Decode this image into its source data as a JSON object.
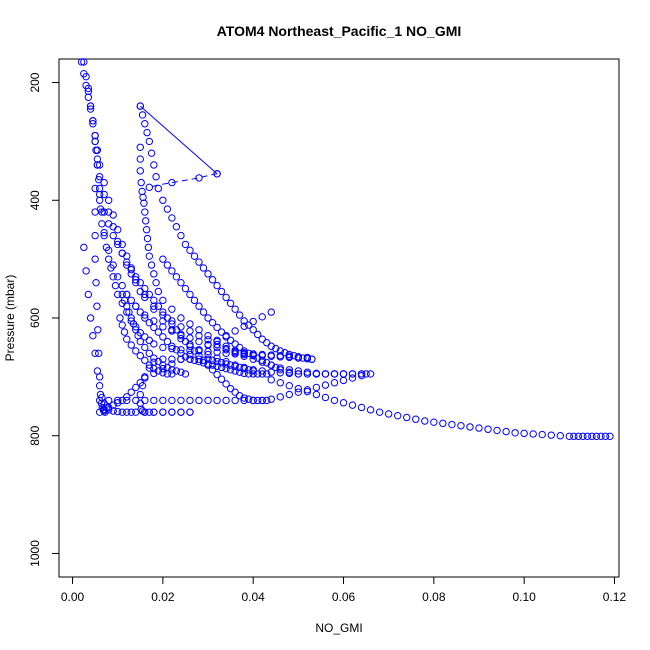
{
  "chart_data": {
    "type": "scatter",
    "title": "ATOM4 Northeast_Pacific_1 NO_GMI",
    "xlabel": "NO_GMI",
    "ylabel": "Pressure (mbar)",
    "xlim": [
      -0.003,
      0.121
    ],
    "ylim": [
      1040,
      160
    ],
    "y_reversed": true,
    "x_ticks": [
      0.0,
      0.02,
      0.04,
      0.06,
      0.08,
      0.1,
      0.12
    ],
    "x_tick_labels": [
      "0.00",
      "0.02",
      "0.04",
      "0.06",
      "0.08",
      "0.10",
      "0.12"
    ],
    "y_ticks": [
      200,
      400,
      600,
      800,
      1000
    ],
    "y_tick_labels": [
      "200",
      "400",
      "600",
      "800",
      "1000"
    ],
    "grid": false,
    "legend": "none",
    "marker": "open-circle",
    "color": "#0000ff",
    "series": [
      {
        "mode": "points",
        "x": [
          0.0025,
          0.003,
          0.0035,
          0.004,
          0.0045,
          0.005,
          0.0052,
          0.0055,
          0.0058,
          0.006,
          0.0062,
          0.0065,
          0.007,
          0.0075,
          0.008,
          0.0085,
          0.009,
          0.0095,
          0.01,
          0.011,
          0.012,
          0.013,
          0.014,
          0.015,
          0.016,
          0.017,
          0.018,
          0.02,
          0.022,
          0.024,
          0.026,
          0.028,
          0.03,
          0.032,
          0.034,
          0.036,
          0.038,
          0.04,
          0.042,
          0.044,
          0.046,
          0.048,
          0.05,
          0.052,
          0.053
        ],
        "y": [
          165,
          190,
          215,
          240,
          265,
          290,
          315,
          340,
          365,
          390,
          415,
          440,
          460,
          480,
          500,
          515,
          530,
          545,
          560,
          575,
          590,
          605,
          615,
          625,
          632,
          638,
          644,
          650,
          652,
          654,
          655,
          656,
          657,
          658,
          660,
          661,
          662,
          663,
          664,
          665,
          666,
          667,
          668,
          669,
          670
        ]
      },
      {
        "mode": "points",
        "x": [
          0.002,
          0.0025,
          0.003,
          0.0035,
          0.004,
          0.0045,
          0.005,
          0.0055,
          0.006,
          0.007,
          0.008,
          0.009,
          0.01,
          0.011,
          0.012,
          0.013,
          0.014,
          0.016,
          0.018,
          0.02,
          0.022,
          0.024,
          0.026,
          0.028,
          0.03,
          0.032,
          0.034,
          0.036,
          0.038,
          0.04,
          0.042,
          0.044,
          0.046,
          0.048,
          0.05,
          0.052,
          0.054,
          0.056,
          0.058,
          0.06,
          0.062,
          0.064,
          0.065
        ],
        "y": [
          165,
          185,
          205,
          225,
          245,
          265,
          290,
          315,
          340,
          370,
          400,
          425,
          450,
          475,
          495,
          515,
          535,
          560,
          585,
          605,
          620,
          635,
          645,
          655,
          662,
          668,
          674,
          680,
          684,
          688,
          690,
          692,
          693,
          694,
          695,
          695,
          695,
          695,
          695,
          695,
          695,
          695,
          695
        ]
      },
      {
        "mode": "points",
        "x": [
          0.0035,
          0.004,
          0.0045,
          0.005,
          0.0055,
          0.006,
          0.007,
          0.008,
          0.009,
          0.01,
          0.011,
          0.012,
          0.013,
          0.014,
          0.015,
          0.016,
          0.018,
          0.02,
          0.022,
          0.024,
          0.026,
          0.028,
          0.03,
          0.032,
          0.034,
          0.036,
          0.038,
          0.04,
          0.042,
          0.044,
          0.046,
          0.048,
          0.05,
          0.052,
          0.054,
          0.056,
          0.058,
          0.06,
          0.062,
          0.064
        ],
        "y": [
          210,
          240,
          270,
          300,
          330,
          360,
          390,
          420,
          445,
          470,
          490,
          510,
          525,
          540,
          555,
          565,
          580,
          595,
          605,
          615,
          622,
          630,
          637,
          645,
          652,
          659,
          665,
          670,
          675,
          680,
          685,
          688,
          690,
          692,
          694,
          695,
          695,
          695,
          695,
          695
        ]
      },
      {
        "mode": "points",
        "x": [
          0.005,
          0.0055,
          0.006,
          0.0065,
          0.007,
          0.008,
          0.009,
          0.01,
          0.011,
          0.012,
          0.014,
          0.016,
          0.018,
          0.02,
          0.022,
          0.024,
          0.026,
          0.028,
          0.03,
          0.032,
          0.034,
          0.036,
          0.038,
          0.04,
          0.042,
          0.044,
          0.046,
          0.048,
          0.05,
          0.052
        ],
        "y": [
          300,
          340,
          380,
          420,
          455,
          485,
          510,
          530,
          545,
          560,
          580,
          595,
          605,
          615,
          622,
          628,
          634,
          640,
          645,
          650,
          654,
          657,
          659,
          661,
          662,
          663,
          664,
          665,
          666,
          667
        ]
      },
      {
        "mode": "points",
        "x": [
          0.005,
          0.005,
          0.005,
          0.005,
          0.0052,
          0.0054,
          0.0056,
          0.0058,
          0.006,
          0.0062,
          0.0064,
          0.0066,
          0.0068,
          0.007,
          0.0072
        ],
        "y": [
          380,
          420,
          460,
          500,
          540,
          580,
          620,
          660,
          700,
          730,
          745,
          752,
          756,
          758,
          760
        ]
      },
      {
        "mode": "points",
        "x": [
          0.0025,
          0.003,
          0.0035,
          0.004,
          0.0045,
          0.005,
          0.0055,
          0.006,
          0.0065,
          0.007,
          0.0075,
          0.008,
          0.009,
          0.01,
          0.011,
          0.012,
          0.013,
          0.014,
          0.016,
          0.018,
          0.02,
          0.022,
          0.024,
          0.026
        ],
        "y": [
          480,
          520,
          560,
          600,
          630,
          660,
          690,
          715,
          735,
          745,
          752,
          756,
          758,
          759,
          760,
          760,
          760,
          760,
          760,
          760,
          760,
          760,
          760,
          760
        ]
      },
      {
        "mode": "points",
        "x": [
          0.015,
          0.015,
          0.015,
          0.0152,
          0.0154,
          0.0156,
          0.0158,
          0.016,
          0.0162,
          0.0164,
          0.0166,
          0.0168,
          0.017,
          0.0175,
          0.018,
          0.0185,
          0.019,
          0.02,
          0.022,
          0.024,
          0.026,
          0.028,
          0.03,
          0.032,
          0.034,
          0.036,
          0.038
        ],
        "y": [
          310,
          330,
          350,
          370,
          385,
          395,
          405,
          420,
          435,
          450,
          465,
          480,
          495,
          510,
          525,
          540,
          555,
          570,
          585,
          600,
          610,
          620,
          630,
          640,
          648,
          655,
          660
        ]
      },
      {
        "mode": "points",
        "x": [
          0.015,
          0.0155,
          0.016,
          0.0165,
          0.017,
          0.0175,
          0.018,
          0.0185,
          0.019,
          0.02,
          0.021,
          0.022,
          0.023,
          0.024,
          0.025,
          0.026,
          0.027,
          0.028,
          0.029,
          0.03,
          0.031,
          0.032,
          0.033,
          0.034,
          0.035,
          0.036,
          0.037,
          0.038,
          0.039,
          0.04,
          0.041,
          0.042,
          0.043,
          0.044,
          0.045,
          0.046,
          0.047,
          0.048,
          0.049,
          0.05,
          0.051,
          0.052,
          0.053
        ],
        "y": [
          240,
          255,
          270,
          285,
          300,
          320,
          340,
          360,
          380,
          400,
          415,
          430,
          445,
          460,
          475,
          485,
          495,
          505,
          515,
          525,
          535,
          545,
          555,
          565,
          575,
          585,
          595,
          605,
          612,
          620,
          628,
          636,
          642,
          648,
          652,
          656,
          659,
          662,
          664,
          666,
          668,
          669,
          670
        ]
      },
      {
        "mode": "points",
        "x": [
          0.04,
          0.039,
          0.038,
          0.037,
          0.036,
          0.035,
          0.034,
          0.033,
          0.032,
          0.031,
          0.03,
          0.028,
          0.026,
          0.024,
          0.022,
          0.02,
          0.018,
          0.017,
          0.016,
          0.0155,
          0.015,
          0.015,
          0.0152,
          0.0155,
          0.016,
          0.017,
          0.018,
          0.02,
          0.022,
          0.024,
          0.026
        ],
        "y": [
          690,
          688,
          686,
          684,
          682,
          680,
          678,
          676,
          674,
          672,
          670,
          670,
          670,
          670,
          670,
          670,
          675,
          685,
          700,
          715,
          730,
          745,
          755,
          758,
          760,
          760,
          760,
          760,
          760,
          760,
          760
        ]
      },
      {
        "mode": "points",
        "x": [
          0.02,
          0.021,
          0.022,
          0.023,
          0.024,
          0.025,
          0.026,
          0.027,
          0.028,
          0.029,
          0.03,
          0.031,
          0.032,
          0.033,
          0.034,
          0.035,
          0.036,
          0.037,
          0.038,
          0.039,
          0.04,
          0.041,
          0.042,
          0.043,
          0.044,
          0.045,
          0.046,
          0.048,
          0.05,
          0.052,
          0.054,
          0.056,
          0.058,
          0.06
        ],
        "y": [
          500,
          510,
          520,
          530,
          540,
          550,
          560,
          570,
          580,
          590,
          600,
          608,
          616,
          624,
          632,
          638,
          644,
          650,
          656,
          660,
          664,
          668,
          672,
          676,
          680,
          684,
          688,
          692,
          695,
          695,
          695,
          695,
          695,
          695
        ]
      },
      {
        "mode": "points",
        "x": [
          0.012,
          0.013,
          0.014,
          0.015,
          0.016,
          0.017,
          0.018,
          0.019,
          0.02,
          0.021,
          0.022,
          0.023,
          0.024,
          0.025,
          0.026,
          0.027,
          0.028,
          0.029,
          0.03,
          0.031,
          0.032,
          0.033,
          0.034,
          0.035,
          0.036,
          0.037,
          0.038,
          0.039,
          0.04,
          0.041,
          0.042,
          0.043
        ],
        "y": [
          560,
          570,
          580,
          590,
          600,
          608,
          616,
          624,
          632,
          640,
          648,
          654,
          660,
          666,
          670,
          672,
          674,
          676,
          678,
          680,
          682,
          684,
          686,
          688,
          690,
          692,
          694,
          695,
          695,
          695,
          695,
          695
        ]
      },
      {
        "mode": "points",
        "x": [
          0.044,
          0.042,
          0.04,
          0.038,
          0.036,
          0.034,
          0.032,
          0.03,
          0.028,
          0.026,
          0.024,
          0.022,
          0.02,
          0.018,
          0.016,
          0.015,
          0.014,
          0.013,
          0.012,
          0.011,
          0.01,
          0.009,
          0.008,
          0.007,
          0.006
        ],
        "y": [
          590,
          598,
          606,
          614,
          622,
          630,
          638,
          646,
          654,
          662,
          670,
          678,
          686,
          694,
          702,
          710,
          718,
          726,
          734,
          740,
          744,
          748,
          752,
          756,
          760
        ]
      },
      {
        "mode": "points",
        "x": [
          0.006,
          0.008,
          0.01,
          0.012,
          0.014,
          0.016,
          0.018,
          0.02,
          0.022,
          0.024,
          0.026,
          0.028,
          0.03,
          0.032,
          0.034,
          0.036,
          0.038,
          0.04,
          0.042,
          0.044,
          0.046,
          0.048,
          0.05,
          0.052,
          0.054,
          0.056,
          0.058,
          0.06,
          0.062,
          0.064,
          0.066
        ],
        "y": [
          740,
          740,
          740,
          740,
          740,
          740,
          740,
          740,
          740,
          740,
          740,
          740,
          740,
          740,
          740,
          740,
          740,
          740,
          740,
          738,
          734,
          730,
          726,
          722,
          718,
          714,
          710,
          706,
          702,
          698,
          695
        ]
      },
      {
        "mode": "points",
        "x": [
          0.044,
          0.046,
          0.048,
          0.05,
          0.052,
          0.054,
          0.056,
          0.058,
          0.06,
          0.062,
          0.064,
          0.066,
          0.068,
          0.07,
          0.072,
          0.074,
          0.076,
          0.078,
          0.08,
          0.082,
          0.084,
          0.086,
          0.088,
          0.09,
          0.092,
          0.094,
          0.096,
          0.098,
          0.1,
          0.102,
          0.104,
          0.106,
          0.108,
          0.11,
          0.111,
          0.112,
          0.113,
          0.114,
          0.115,
          0.116,
          0.117,
          0.118,
          0.119
        ],
        "y": [
          705,
          710,
          715,
          720,
          725,
          730,
          735,
          740,
          744,
          748,
          752,
          756,
          760,
          763,
          766,
          769,
          772,
          775,
          777,
          779,
          781,
          783,
          785,
          787,
          789,
          791,
          793,
          795,
          796,
          797,
          798,
          799,
          800,
          801,
          801,
          801,
          801,
          801,
          801,
          801,
          801,
          801,
          801
        ]
      },
      {
        "mode": "points",
        "x": [
          0.006,
          0.007,
          0.008,
          0.009,
          0.01,
          0.011,
          0.012,
          0.013,
          0.014,
          0.015,
          0.016,
          0.017,
          0.018,
          0.019,
          0.02,
          0.021,
          0.022,
          0.023,
          0.024,
          0.025,
          0.026,
          0.027,
          0.028,
          0.029,
          0.03,
          0.031,
          0.032,
          0.033,
          0.034,
          0.035,
          0.036,
          0.037,
          0.038,
          0.039,
          0.04,
          0.041,
          0.042,
          0.043
        ],
        "y": [
          400,
          420,
          440,
          460,
          475,
          490,
          505,
          518,
          530,
          540,
          550,
          560,
          570,
          580,
          590,
          600,
          610,
          620,
          630,
          640,
          648,
          656,
          664,
          672,
          680,
          688,
          696,
          704,
          712,
          720,
          726,
          732,
          736,
          738,
          740,
          740,
          740,
          740
        ]
      },
      {
        "mode": "points",
        "x": [
          0.011,
          0.0115,
          0.012,
          0.0125,
          0.013,
          0.0135,
          0.014,
          0.0145,
          0.015,
          0.016,
          0.017,
          0.018,
          0.019,
          0.02,
          0.021,
          0.022,
          0.023,
          0.024,
          0.025
        ],
        "y": [
          560,
          570,
          580,
          590,
          600,
          610,
          620,
          630,
          640,
          650,
          660,
          668,
          674,
          680,
          684,
          688,
          690,
          692,
          695
        ]
      },
      {
        "mode": "points",
        "x": [
          0.0105,
          0.011,
          0.0115,
          0.012,
          0.013,
          0.014,
          0.015,
          0.016,
          0.017,
          0.018,
          0.019,
          0.02,
          0.021,
          0.022
        ],
        "y": [
          600,
          612,
          624,
          636,
          646,
          656,
          664,
          672,
          680,
          686,
          690,
          693,
          695,
          695
        ]
      },
      {
        "mode": "line",
        "x": [
          0.015,
          0.032
        ],
        "y": [
          240,
          355
        ]
      },
      {
        "mode": "dashed",
        "x": [
          0.032,
          0.03,
          0.028,
          0.025,
          0.022,
          0.019,
          0.017
        ],
        "y": [
          355,
          358,
          362,
          366,
          370,
          374,
          378
        ]
      }
    ]
  }
}
